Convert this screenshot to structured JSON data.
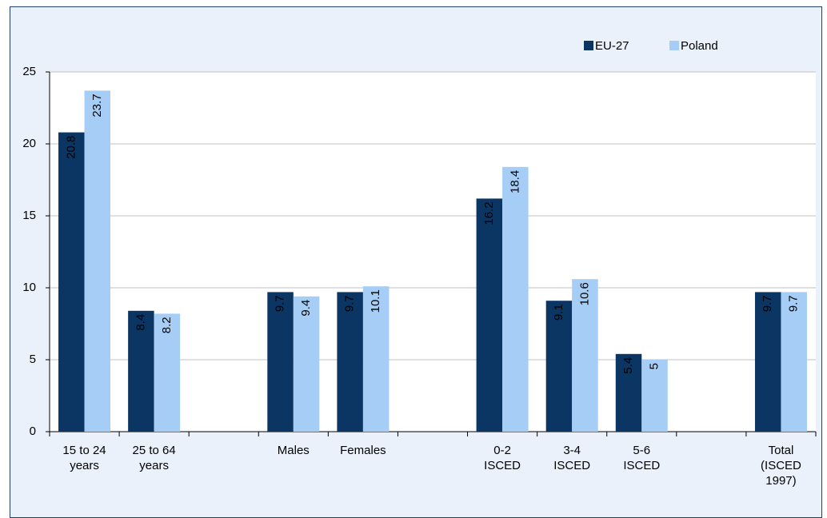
{
  "chart_data": {
    "type": "bar",
    "categories": [
      "15 to 24 years",
      "25 to 64 years",
      null,
      "Males",
      "Females",
      null,
      "0-2 ISCED",
      "3-4 ISCED",
      "5-6 ISCED",
      null,
      "Total (ISCED 1997)"
    ],
    "series": [
      {
        "name": "EU-27",
        "color": "#0b3563",
        "values": [
          20.8,
          8.4,
          null,
          9.7,
          9.7,
          null,
          16.2,
          9.1,
          5.4,
          null,
          9.7
        ]
      },
      {
        "name": "Poland",
        "color": "#a6cdf5",
        "values": [
          23.7,
          8.2,
          null,
          9.4,
          10.1,
          null,
          18.4,
          10.6,
          5,
          null,
          9.7
        ]
      }
    ],
    "ylim": [
      0,
      25
    ],
    "yticks": [
      0,
      5,
      10,
      15,
      20,
      25
    ],
    "grid": true,
    "legend": "top-right"
  }
}
